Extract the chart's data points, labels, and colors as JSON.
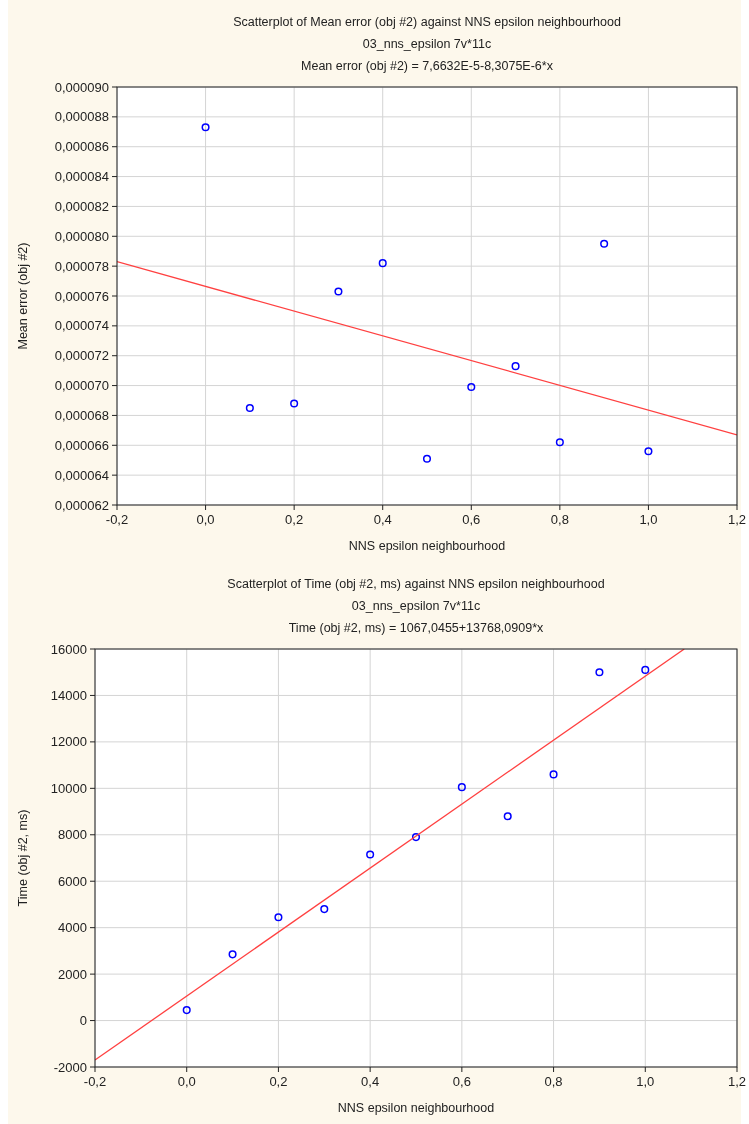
{
  "chart_data": [
    {
      "type": "scatter",
      "title": "Scatterplot of Mean error (obj #2) against NNS epsilon neighbourhood",
      "subtitle": "03_nns_epsilon 7v*11c",
      "annotations": [
        "Mean error (obj #2) = 7,6632E-5-8,3075E-6*x"
      ],
      "xlabel": "NNS epsilon neighbourhood",
      "ylabel": "Mean error (obj #2)",
      "x": [
        0,
        0.1,
        0.2,
        0.3,
        0.4,
        0.5,
        0.6,
        0.7,
        0.8,
        0.9,
        1.0
      ],
      "series": [
        {
          "color": "#0000ff",
          "marker": "circle",
          "values": [
            8.73e-05,
            6.85e-05,
            6.88e-05,
            7.63e-05,
            7.82e-05,
            6.51e-05,
            6.99e-05,
            7.13e-05,
            6.62e-05,
            7.95e-05,
            6.56e-05
          ]
        },
        {
          "type": "line",
          "color": "#ff4040",
          "line_style": "solid",
          "x": [
            -0.2,
            1.2
          ],
          "values": [
            7.83e-05,
            6.67e-05
          ]
        }
      ],
      "xlim": [
        -0.2,
        1.2
      ],
      "xticks": [
        {
          "value": -0.2,
          "label": "-0,2"
        },
        {
          "value": 0,
          "label": "0,0"
        },
        {
          "value": 0.2,
          "label": "0,2"
        },
        {
          "value": 0.4,
          "label": "0,4"
        },
        {
          "value": 0.6,
          "label": "0,6"
        },
        {
          "value": 0.8,
          "label": "0,8"
        },
        {
          "value": 1.0,
          "label": "1,0"
        },
        {
          "value": 1.2,
          "label": "1,2"
        }
      ],
      "ylim": [
        6.2e-05,
        9e-05
      ],
      "yticks": [
        {
          "value": 6.2e-05,
          "label": "0,000062"
        },
        {
          "value": 6.4e-05,
          "label": "0,000064"
        },
        {
          "value": 6.6e-05,
          "label": "0,000066"
        },
        {
          "value": 6.8e-05,
          "label": "0,000068"
        },
        {
          "value": 7e-05,
          "label": "0,000070"
        },
        {
          "value": 7.2e-05,
          "label": "0,000072"
        },
        {
          "value": 7.4e-05,
          "label": "0,000074"
        },
        {
          "value": 7.6e-05,
          "label": "0,000076"
        },
        {
          "value": 7.8e-05,
          "label": "0,000078"
        },
        {
          "value": 8e-05,
          "label": "0,000080"
        },
        {
          "value": 8.2e-05,
          "label": "0,000082"
        },
        {
          "value": 8.4e-05,
          "label": "0,000084"
        },
        {
          "value": 8.6e-05,
          "label": "0,000086"
        },
        {
          "value": 8.8e-05,
          "label": "0,000088"
        },
        {
          "value": 9e-05,
          "label": "0,000090"
        }
      ],
      "grid": true
    },
    {
      "type": "scatter",
      "title": "Scatterplot of Time (obj #2, ms) against NNS epsilon neighbourhood",
      "subtitle": "03_nns_epsilon 7v*11c",
      "annotations": [
        "Time (obj #2, ms) = 1067,0455+13768,0909*x"
      ],
      "xlabel": "NNS epsilon neighbourhood",
      "ylabel": "Time (obj #2, ms)",
      "x": [
        0,
        0.1,
        0.2,
        0.3,
        0.4,
        0.5,
        0.6,
        0.7,
        0.8,
        0.9,
        1.0
      ],
      "series": [
        {
          "color": "#0000ff",
          "marker": "circle",
          "values": [
            450,
            2850,
            4450,
            4800,
            7150,
            7900,
            10050,
            8800,
            10600,
            15000,
            15100
          ]
        },
        {
          "type": "line",
          "color": "#ff4040",
          "line_style": "solid",
          "x": [
            -0.2,
            1.085
          ],
          "values": [
            -1700,
            16000
          ]
        }
      ],
      "xlim": [
        -0.2,
        1.2
      ],
      "xticks": [
        {
          "value": -0.2,
          "label": "-0,2"
        },
        {
          "value": 0,
          "label": "0,0"
        },
        {
          "value": 0.2,
          "label": "0,2"
        },
        {
          "value": 0.4,
          "label": "0,4"
        },
        {
          "value": 0.6,
          "label": "0,6"
        },
        {
          "value": 0.8,
          "label": "0,8"
        },
        {
          "value": 1.0,
          "label": "1,0"
        },
        {
          "value": 1.2,
          "label": "1,2"
        }
      ],
      "ylim": [
        -2000,
        16000
      ],
      "yticks": [
        -2000,
        0,
        2000,
        4000,
        6000,
        8000,
        10000,
        12000,
        14000,
        16000
      ],
      "grid": true
    }
  ]
}
